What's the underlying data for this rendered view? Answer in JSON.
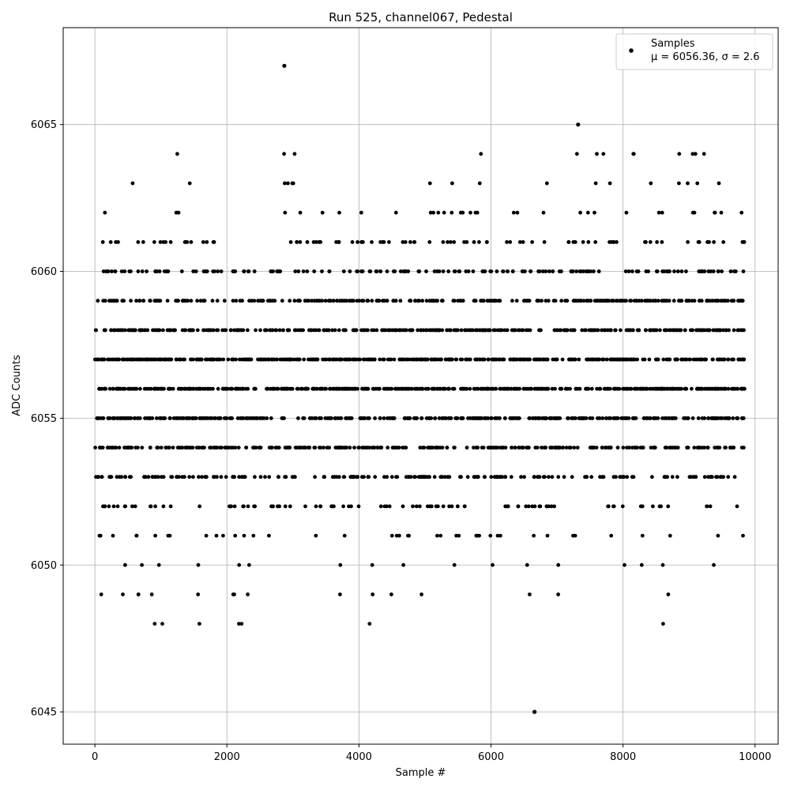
{
  "chart_data": {
    "type": "scatter",
    "title": "Run 525, channel067, Pedestal",
    "xlabel": "Sample #",
    "ylabel": "ADC Counts",
    "xlim": [
      -480,
      10350
    ],
    "ylim": [
      6043.9,
      6068.3
    ],
    "xticks": [
      0,
      2000,
      4000,
      6000,
      8000,
      10000
    ],
    "yticks": [
      6045,
      6050,
      6055,
      6060,
      6065
    ],
    "grid": true,
    "marker_color": "#000000",
    "legend": {
      "placement": "top-right",
      "entries": [
        {
          "label": "Samples",
          "stats": "μ = 6056.36, σ = 2.6"
        }
      ]
    },
    "series": [
      {
        "name": "Samples",
        "x_range": [
          0,
          9840
        ],
        "n_samples": 3000,
        "level_bands": [
          {
            "y": 6048,
            "x_ranges": [
              [
                870,
                1050
              ],
              [
                1560,
                1600
              ],
              [
                2120,
                2270
              ],
              [
                4150,
                4180
              ],
              [
                8600,
                8630
              ]
            ]
          },
          {
            "y": 6049,
            "x_ranges": [
              [
                80,
                100
              ],
              [
                360,
                700
              ],
              [
                860,
                1000
              ],
              [
                1540,
                1570
              ],
              [
                1950,
                2370
              ],
              [
                3580,
                3720
              ],
              [
                4180,
                4210
              ],
              [
                4480,
                4510
              ],
              [
                4930,
                4960
              ],
              [
                6570,
                6600
              ],
              [
                6990,
                7020
              ],
              [
                8660,
                8690
              ]
            ]
          },
          {
            "y": 6050,
            "x_ranges": [
              [
                0,
                1170
              ],
              [
                1380,
                1600
              ],
              [
                1850,
                2680
              ],
              [
                3440,
                3720
              ],
              [
                4180,
                5460
              ],
              [
                5750,
                6620
              ],
              [
                6990,
                7320
              ],
              [
                8010,
                8030
              ],
              [
                8280,
                8310
              ],
              [
                8590,
                8610
              ],
              [
                9340,
                9600
              ]
            ]
          },
          {
            "y": 6051,
            "x_ranges": [
              [
                0,
                1350
              ],
              [
                1500,
                2690
              ],
              [
                3320,
                3460
              ],
              [
                3680,
                3900
              ],
              [
                4090,
                6900
              ],
              [
                7000,
                7290
              ],
              [
                7810,
                7830
              ],
              [
                8280,
                8310
              ],
              [
                8610,
                8800
              ],
              [
                9420,
                9480
              ],
              [
                9810,
                9830
              ]
            ]
          },
          {
            "y": 6052,
            "x_ranges": [
              [
                0,
                1200
              ],
              [
                1550,
                3000
              ],
              [
                3150,
                4000
              ],
              [
                4150,
                5800
              ],
              [
                5960,
                7300
              ],
              [
                7650,
                8060
              ],
              [
                8220,
                8700
              ],
              [
                9160,
                9340
              ],
              [
                9700,
                9730
              ]
            ]
          },
          {
            "y": 6053,
            "x_ranges": [
              [
                0,
                3050
              ],
              [
                3270,
                8830
              ],
              [
                8960,
                9810
              ]
            ]
          },
          {
            "y": 6054,
            "x_ranges": [
              [
                0,
                2990
              ],
              [
                2980,
                7360
              ],
              [
                7490,
                8860
              ],
              [
                8960,
                9840
              ]
            ]
          },
          {
            "y": 6055,
            "x_ranges": [
              [
                0,
                8820
              ],
              [
                8920,
                9840
              ]
            ]
          },
          {
            "y": 6056,
            "x_ranges": [
              [
                0,
                9840
              ]
            ]
          },
          {
            "y": 6057,
            "x_ranges": [
              [
                0,
                9840
              ]
            ]
          },
          {
            "y": 6058,
            "x_ranges": [
              [
                0,
                9840
              ]
            ]
          },
          {
            "y": 6059,
            "x_ranges": [
              [
                40,
                9840
              ]
            ]
          },
          {
            "y": 6060,
            "x_ranges": [
              [
                100,
                1940
              ],
              [
                2040,
                2430
              ],
              [
                2630,
                9840
              ]
            ]
          },
          {
            "y": 6061,
            "x_ranges": [
              [
                100,
                1960
              ],
              [
                2640,
                9840
              ]
            ]
          },
          {
            "y": 6062,
            "x_ranges": [
              [
                140,
                200
              ],
              [
                1130,
                1460
              ],
              [
                2650,
                6430
              ],
              [
                6740,
                6920
              ],
              [
                7240,
                7780
              ],
              [
                8020,
                9840
              ]
            ]
          },
          {
            "y": 6063,
            "x_ranges": [
              [
                560,
                590
              ],
              [
                1400,
                1480
              ],
              [
                2820,
                3330
              ],
              [
                5070,
                5100
              ],
              [
                5330,
                5460
              ],
              [
                5800,
                5830
              ],
              [
                6830,
                6860
              ],
              [
                7550,
                7610
              ],
              [
                7800,
                7830
              ],
              [
                8420,
                8500
              ],
              [
                8830,
                8860
              ],
              [
                8980,
                9150
              ],
              [
                9440,
                9470
              ]
            ]
          },
          {
            "y": 6064,
            "x_ranges": [
              [
                1240,
                1260
              ],
              [
                2860,
                2890
              ],
              [
                3000,
                3030
              ],
              [
                5820,
                5850
              ],
              [
                7290,
                7320
              ],
              [
                7590,
                7620
              ],
              [
                7680,
                7710
              ],
              [
                8110,
                8200
              ],
              [
                8840,
                8870
              ],
              [
                9050,
                9130
              ],
              [
                9200,
                9230
              ]
            ]
          }
        ],
        "outliers": [
          {
            "x": 2870,
            "y": 6067
          },
          {
            "x": 7320,
            "y": 6065
          },
          {
            "x": 6660,
            "y": 6045
          }
        ]
      }
    ]
  }
}
